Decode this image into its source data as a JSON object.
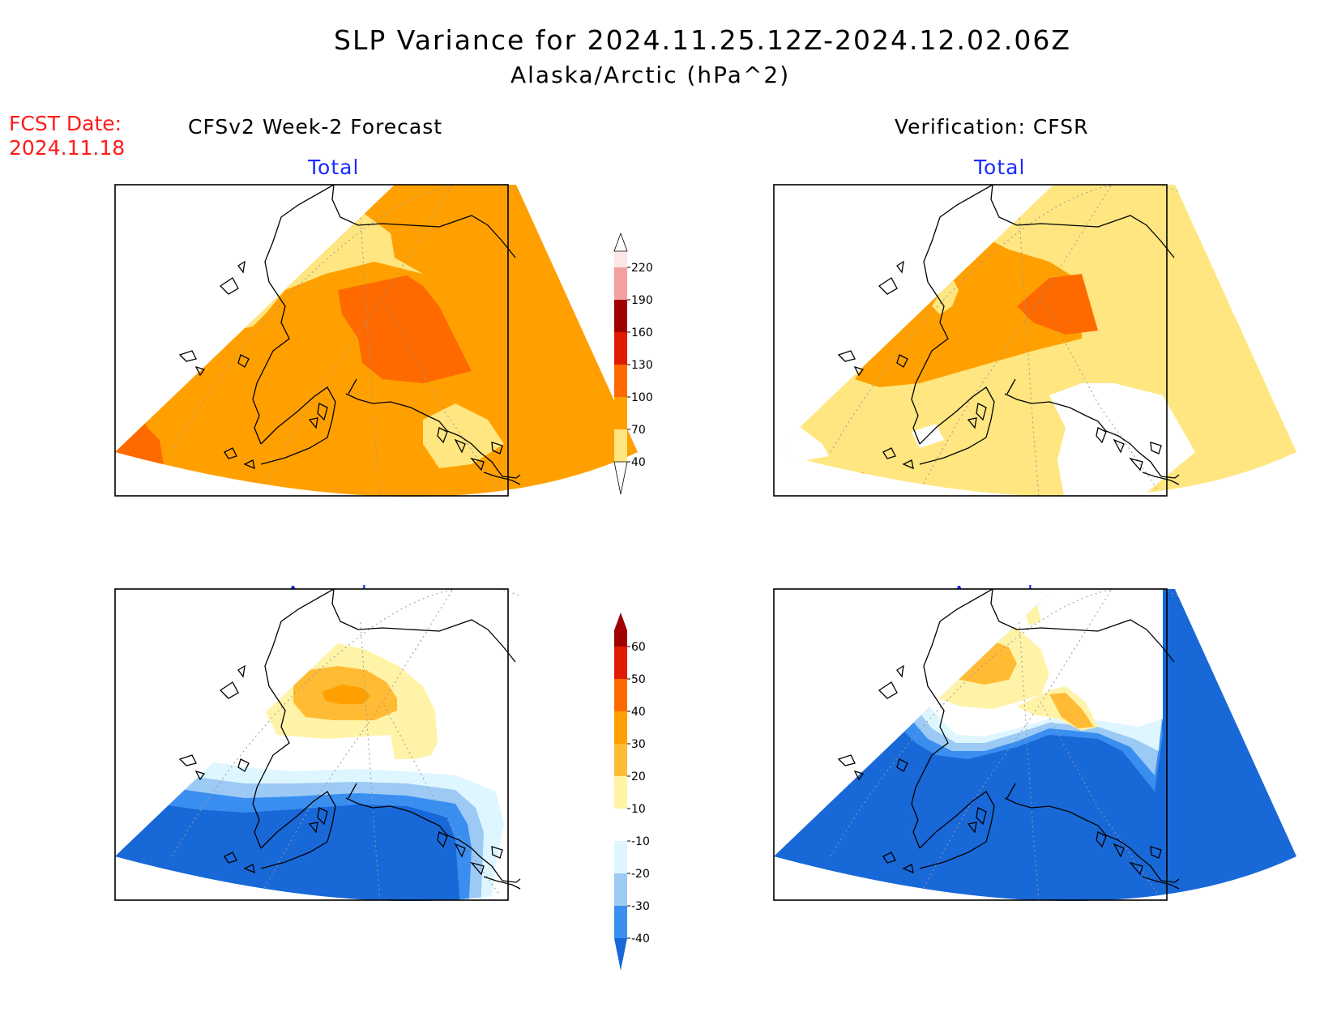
{
  "header": {
    "title": "SLP Variance for 2024.11.25.12Z-2024.12.02.06Z",
    "subtitle": "Alaska/Arctic (hPa^2)",
    "fcst_label": "FCST Date:",
    "fcst_date": "2024.11.18"
  },
  "columns": {
    "left": "CFSv2 Week-2 Forecast",
    "right": "Verification: CFSR"
  },
  "panels": {
    "top_left": "Total",
    "top_right": "Total",
    "bottom_left": "Anomaly",
    "bottom_right": "Anomaly"
  },
  "colorbars": {
    "total": {
      "labels": [
        "40",
        "70",
        "100",
        "130",
        "160",
        "190",
        "220"
      ],
      "colors": [
        "#ffe680",
        "#ffa000",
        "#ff6a00",
        "#e01b00",
        "#a00000",
        "#f4a0a0",
        "#fde6e6"
      ]
    },
    "anomaly": {
      "labels": [
        "-40",
        "-30",
        "-20",
        "-10",
        "10",
        "20",
        "30",
        "40",
        "50",
        "60"
      ],
      "colors": [
        "#1868d8",
        "#3a8ef0",
        "#9ccaf5",
        "#def6ff",
        "#ffffff",
        "#fff3a8",
        "#ffbb33",
        "#ffa000",
        "#ff6a00",
        "#e01b00",
        "#a00000"
      ]
    }
  },
  "map_colors": {
    "light_yellow": "#ffe680",
    "orange": "#ffa000",
    "dark_orange": "#ff6a00",
    "pale_yellow": "#fff3a8",
    "light_orange": "#ffbb33",
    "pale_blue": "#def6ff",
    "light_blue": "#9ccaf5",
    "mid_blue": "#3a8ef0",
    "blue": "#1868d8"
  }
}
